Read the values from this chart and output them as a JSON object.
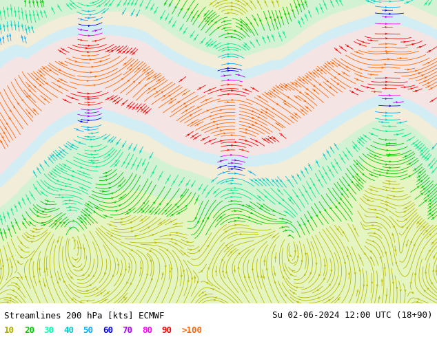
{
  "title_left": "Streamlines 200 hPa [kts] ECMWF",
  "title_right": "Su 02-06-2024 12:00 UTC (18+90)",
  "legend_values": [
    "10",
    "20",
    "30",
    "40",
    "50",
    "60",
    "70",
    "80",
    "90",
    ">100"
  ],
  "legend_colors": [
    "#aaaa00",
    "#00cc00",
    "#00ffaa",
    "#00cccc",
    "#00aaff",
    "#0000ff",
    "#aa00ff",
    "#ff00ff",
    "#ff0000",
    "#ff6600"
  ],
  "bg_color": "#ffffff",
  "fig_width": 6.34,
  "fig_height": 4.9,
  "dpi": 100,
  "text_color": "#000000",
  "title_fontsize": 9,
  "legend_fontsize": 9,
  "speed_bands": [
    [
      0,
      15,
      "#bbbb00"
    ],
    [
      15,
      25,
      "#00cc00"
    ],
    [
      25,
      35,
      "#00ee88"
    ],
    [
      35,
      45,
      "#00cccc"
    ],
    [
      45,
      55,
      "#00aaff"
    ],
    [
      55,
      65,
      "#0000ff"
    ],
    [
      65,
      75,
      "#aa00ee"
    ],
    [
      75,
      85,
      "#ee00ee"
    ],
    [
      85,
      95,
      "#ff2200"
    ],
    [
      95,
      115,
      "#ff0000"
    ],
    [
      115,
      300,
      "#ff6600"
    ]
  ]
}
